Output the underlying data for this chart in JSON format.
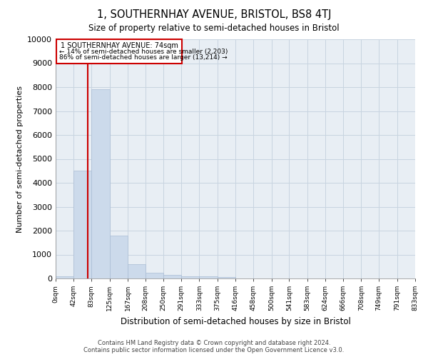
{
  "title": "1, SOUTHERNHAY AVENUE, BRISTOL, BS8 4TJ",
  "subtitle": "Size of property relative to semi-detached houses in Bristol",
  "xlabel": "Distribution of semi-detached houses by size in Bristol",
  "ylabel": "Number of semi-detached properties",
  "footer_line1": "Contains HM Land Registry data © Crown copyright and database right 2024.",
  "footer_line2": "Contains public sector information licensed under the Open Government Licence v3.0.",
  "property_size": 74,
  "annotation_text_line1": "1 SOUTHERNHAY AVENUE: 74sqm",
  "annotation_text_line2": "← 14% of semi-detached houses are smaller (2,203)",
  "annotation_text_line3": "86% of semi-detached houses are larger (13,214) →",
  "bar_color": "#ccdaeb",
  "bar_edge_color": "#aabdd4",
  "grid_color": "#c8d4e0",
  "vline_color": "#cc0000",
  "annotation_box_color": "#cc0000",
  "bg_color": "#e8eef4",
  "ylim": [
    0,
    10000
  ],
  "yticks": [
    0,
    1000,
    2000,
    3000,
    4000,
    5000,
    6000,
    7000,
    8000,
    9000,
    10000
  ],
  "bin_edges": [
    0,
    42,
    83,
    125,
    167,
    208,
    250,
    291,
    333,
    375,
    416,
    458,
    500,
    541,
    583,
    624,
    666,
    708,
    749,
    791,
    833
  ],
  "bin_labels": [
    "0sqm",
    "42sqm",
    "83sqm",
    "125sqm",
    "167sqm",
    "208sqm",
    "250sqm",
    "291sqm",
    "333sqm",
    "375sqm",
    "416sqm",
    "458sqm",
    "500sqm",
    "541sqm",
    "583sqm",
    "624sqm",
    "666sqm",
    "708sqm",
    "749sqm",
    "791sqm",
    "833sqm"
  ],
  "bar_heights": [
    100,
    4500,
    7900,
    1800,
    600,
    250,
    150,
    100,
    75,
    50,
    0,
    0,
    0,
    0,
    0,
    0,
    0,
    0,
    0,
    0
  ]
}
